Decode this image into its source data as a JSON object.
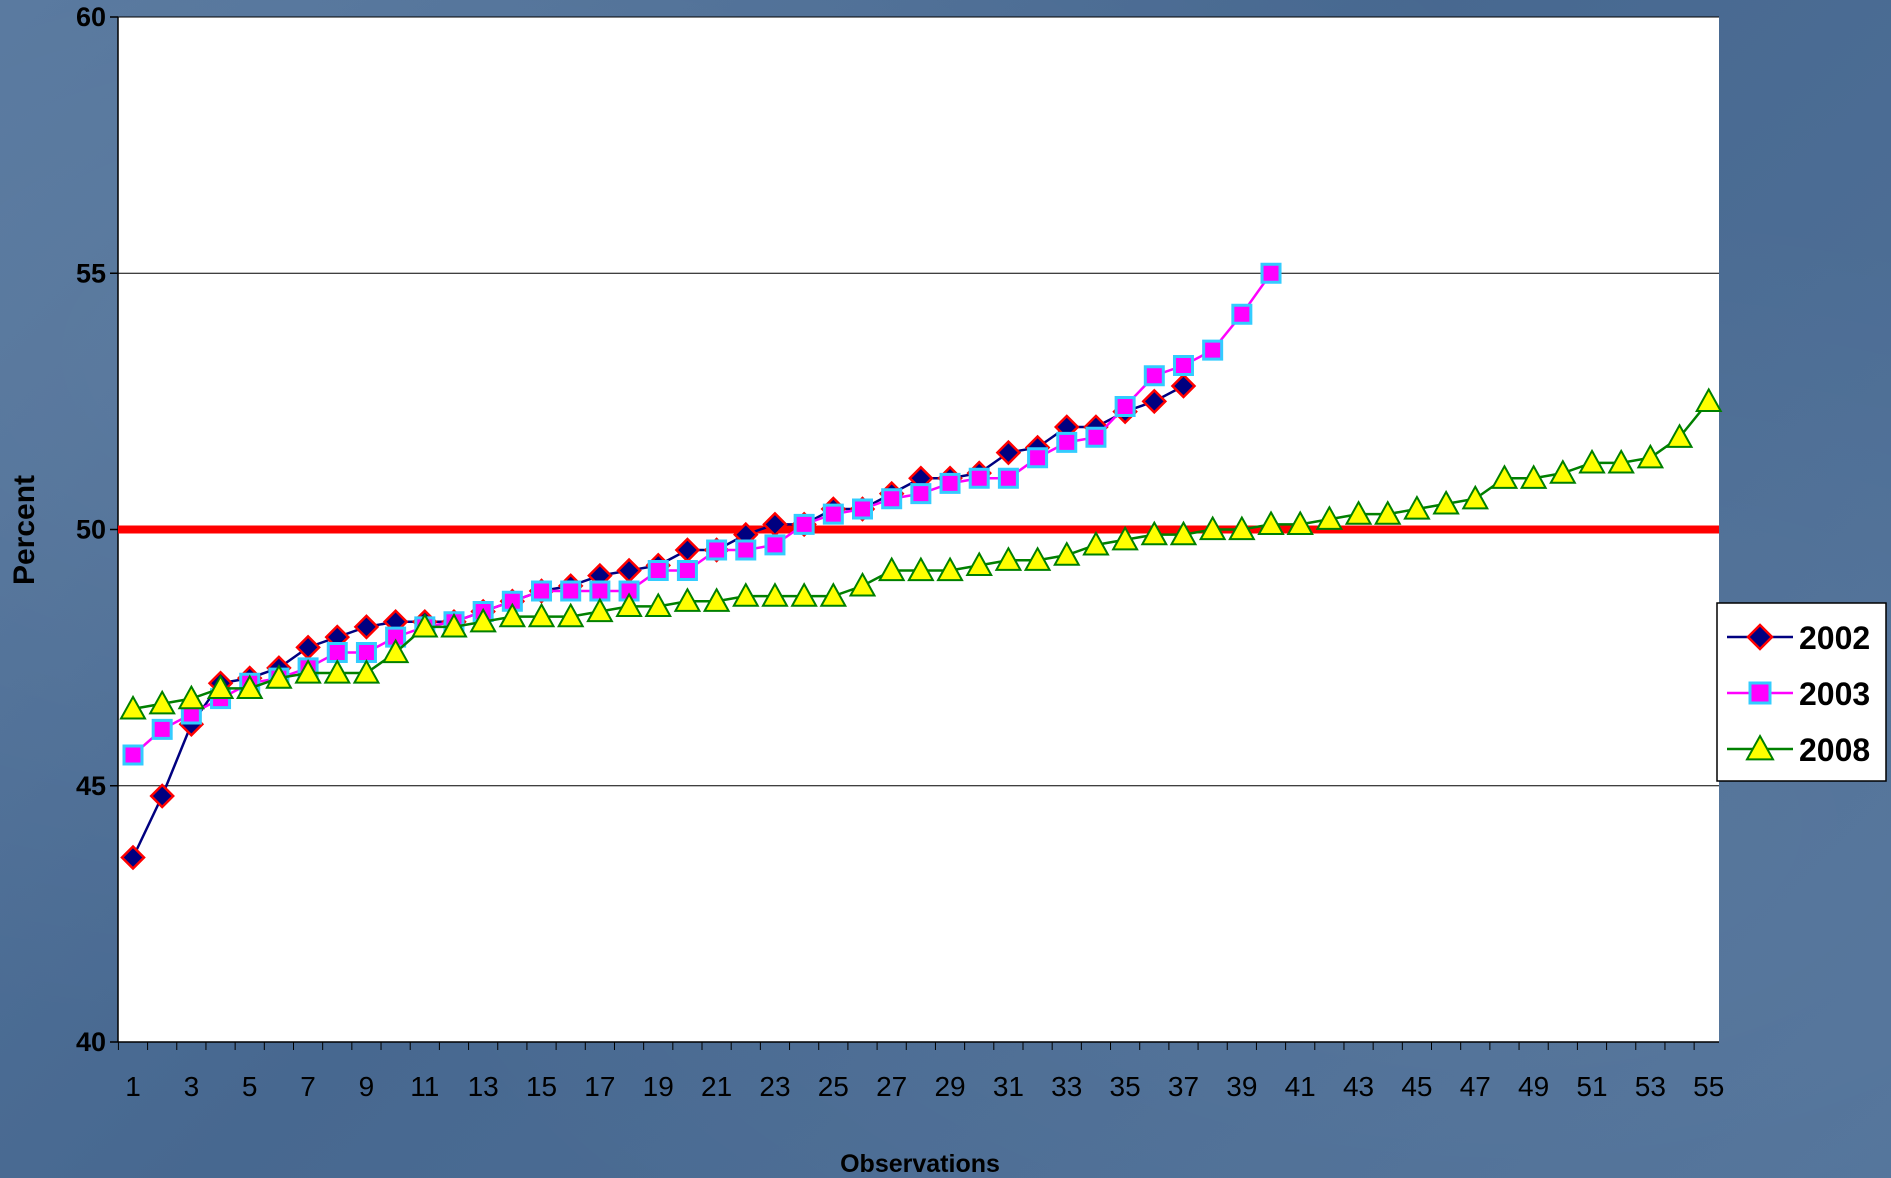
{
  "chart_data": {
    "type": "line",
    "title": "",
    "xlabel": "Observations",
    "ylabel": "Percent",
    "xlim": [
      1,
      55
    ],
    "ylim": [
      40,
      60
    ],
    "y_ticks": [
      40,
      45,
      50,
      55,
      60
    ],
    "x_tick_labels": [
      1,
      3,
      5,
      7,
      9,
      11,
      13,
      15,
      17,
      19,
      21,
      23,
      25,
      27,
      29,
      31,
      33,
      35,
      37,
      39,
      41,
      43,
      45,
      47,
      49,
      51,
      53,
      55
    ],
    "grid": "horizontal",
    "legend_position": "right",
    "reference_line": {
      "y": 50,
      "color": "#ff0000"
    },
    "series": [
      {
        "name": "2002",
        "marker": "diamond",
        "line_color": "#000080",
        "marker_fill": "#000080",
        "marker_edge": "#ff0000",
        "values": [
          43.6,
          44.8,
          46.2,
          47.0,
          47.1,
          47.3,
          47.7,
          47.9,
          48.1,
          48.2,
          48.2,
          48.2,
          48.4,
          48.6,
          48.8,
          48.9,
          49.1,
          49.2,
          49.3,
          49.6,
          49.6,
          49.9,
          50.1,
          50.1,
          50.4,
          50.4,
          50.7,
          51.0,
          51.0,
          51.1,
          51.5,
          51.6,
          52.0,
          52.0,
          52.3,
          52.5,
          52.8
        ]
      },
      {
        "name": "2003",
        "marker": "square",
        "line_color": "#ff00ff",
        "marker_fill": "#ff00ff",
        "marker_edge": "#33ccff",
        "values": [
          45.6,
          46.1,
          46.4,
          46.7,
          47.0,
          47.1,
          47.3,
          47.6,
          47.6,
          47.9,
          48.1,
          48.2,
          48.4,
          48.6,
          48.8,
          48.8,
          48.8,
          48.8,
          49.2,
          49.2,
          49.6,
          49.6,
          49.7,
          50.1,
          50.3,
          50.4,
          50.6,
          50.7,
          50.9,
          51.0,
          51.0,
          51.4,
          51.7,
          51.8,
          52.4,
          53.0,
          53.2,
          53.5,
          54.2,
          55.0
        ]
      },
      {
        "name": "2008",
        "marker": "triangle",
        "line_color": "#008000",
        "marker_fill": "#ffff00",
        "marker_edge": "#008000",
        "values": [
          46.5,
          46.6,
          46.7,
          46.9,
          46.9,
          47.1,
          47.2,
          47.2,
          47.2,
          47.6,
          48.1,
          48.1,
          48.2,
          48.3,
          48.3,
          48.3,
          48.4,
          48.5,
          48.5,
          48.6,
          48.6,
          48.7,
          48.7,
          48.7,
          48.7,
          48.9,
          49.2,
          49.2,
          49.2,
          49.3,
          49.4,
          49.4,
          49.5,
          49.7,
          49.8,
          49.9,
          49.9,
          50.0,
          50.0,
          50.1,
          50.1,
          50.2,
          50.3,
          50.3,
          50.4,
          50.5,
          50.6,
          51.0,
          51.0,
          51.1,
          51.3,
          51.3,
          51.4,
          51.8,
          52.5
        ]
      }
    ]
  }
}
